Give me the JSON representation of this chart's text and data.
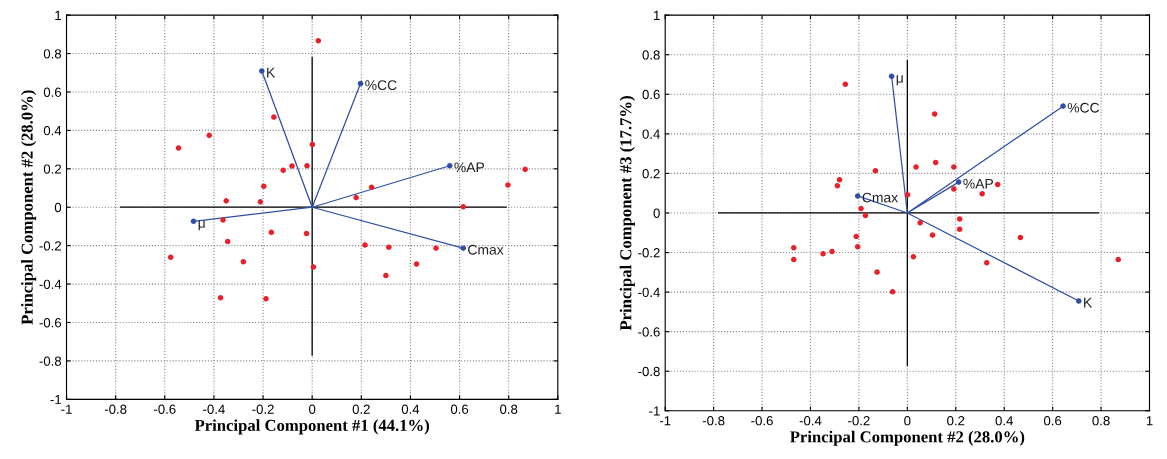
{
  "chart_data": [
    {
      "type": "scatter",
      "xlabel": "Principal Component #1 (44.1%)",
      "ylabel": "Principal Component #2 (28.0%)",
      "xlim": [
        -1,
        1
      ],
      "ylim": [
        -1,
        1
      ],
      "xticks": [
        -1,
        -0.8,
        -0.6,
        -0.4,
        -0.2,
        0,
        0.2,
        0.4,
        0.6,
        0.8,
        1
      ],
      "yticks": [
        -1,
        -0.8,
        -0.6,
        -0.4,
        -0.2,
        0,
        0.2,
        0.4,
        0.6,
        0.8,
        1
      ],
      "grid": true,
      "marker": "circle",
      "series": [
        {
          "type": "line",
          "color": "#000000",
          "marker": "none",
          "x": [
            -0.78,
            0.79
          ],
          "values": [
            0,
            0
          ]
        },
        {
          "type": "line",
          "color": "#000000",
          "marker": "none",
          "x": [
            0,
            0
          ],
          "values": [
            -0.77,
            0.78
          ]
        },
        {
          "type": "line",
          "color": "#2e4fa8",
          "marker": "none",
          "x": [
            0,
            -0.205,
            0,
            -0.483,
            0,
            0.197,
            0,
            0.56,
            0,
            0.615
          ],
          "values": [
            0,
            0.709,
            0,
            -0.073,
            0,
            0.644,
            0,
            0.216,
            0,
            -0.213
          ]
        },
        {
          "color": "#2e4fa8",
          "x": [
            -0.205,
            -0.483,
            0.197,
            0.56,
            0.615
          ],
          "values": [
            0.709,
            -0.073,
            0.644,
            0.216,
            -0.213
          ]
        },
        {
          "color": "#e8202a",
          "x": [
            -0.544,
            -0.419,
            -0.156,
            -0.118,
            -0.082,
            -0.197,
            -0.35,
            -0.211,
            -0.363,
            -0.166,
            -0.344,
            -0.576,
            -0.28,
            -0.373,
            -0.188,
            0.025,
            0.001,
            -0.021,
            0.242,
            0.179,
            0.615,
            0.797,
            0.867,
            -0.023,
            0.215,
            0.312,
            0.504,
            0.425,
            0.3,
            0.005
          ],
          "values": [
            0.308,
            0.374,
            0.469,
            0.192,
            0.215,
            0.109,
            0.033,
            0.028,
            -0.066,
            -0.131,
            -0.178,
            -0.26,
            -0.284,
            -0.471,
            -0.476,
            0.867,
            0.327,
            0.216,
            0.104,
            0.05,
            0.003,
            0.116,
            0.197,
            -0.137,
            -0.197,
            -0.208,
            -0.213,
            -0.296,
            -0.355,
            -0.311
          ]
        }
      ],
      "annotations": [
        {
          "text": "K",
          "x": -0.205,
          "y": 0.709
        },
        {
          "text": "μ",
          "x": -0.483,
          "y": -0.073
        },
        {
          "text": "%CC",
          "x": 0.197,
          "y": 0.644
        },
        {
          "text": "%AP",
          "x": 0.56,
          "y": 0.216
        },
        {
          "text": "Cmax",
          "x": 0.615,
          "y": -0.213
        }
      ]
    },
    {
      "type": "scatter",
      "xlabel": "Principal Component #2 (28.0%)",
      "ylabel": "Principal Component #3 (17.7%)",
      "xlim": [
        -1,
        1
      ],
      "ylim": [
        -1,
        1
      ],
      "xticks": [
        -1,
        -0.8,
        -0.6,
        -0.4,
        -0.2,
        0,
        0.2,
        0.4,
        0.6,
        0.8,
        1
      ],
      "yticks": [
        -1,
        -0.8,
        -0.6,
        -0.4,
        -0.2,
        0,
        0.2,
        0.4,
        0.6,
        0.8,
        1
      ],
      "grid": true,
      "marker": "circle",
      "series": [
        {
          "type": "line",
          "color": "#000000",
          "marker": "none",
          "x": [
            -0.78,
            0.79
          ],
          "values": [
            0,
            0
          ]
        },
        {
          "type": "line",
          "color": "#000000",
          "marker": "none",
          "x": [
            0,
            0
          ],
          "values": [
            -0.77,
            0.77
          ]
        },
        {
          "type": "line",
          "color": "#2e4fa8",
          "marker": "none",
          "x": [
            0,
            -0.065,
            0,
            -0.205,
            0,
            0.643,
            0,
            0.212,
            0,
            0.708
          ],
          "values": [
            0,
            0.691,
            0,
            0.086,
            0,
            0.54,
            0,
            0.156,
            0,
            -0.445
          ]
        },
        {
          "color": "#2e4fa8",
          "x": [
            -0.065,
            -0.205,
            0.643,
            0.212,
            0.708
          ],
          "values": [
            0.691,
            0.086,
            0.54,
            0.156,
            -0.445
          ]
        },
        {
          "color": "#e8202a",
          "x": [
            -0.256,
            -0.132,
            -0.28,
            -0.289,
            -0.191,
            -0.173,
            -0.211,
            -0.205,
            -0.469,
            -0.469,
            -0.348,
            -0.311,
            -0.125,
            -0.061,
            0.113,
            0.036,
            0.117,
            0.192,
            0.192,
            0.001,
            0.309,
            0.373,
            0.053,
            0.216,
            0.216,
            0.104,
            0.467,
            0.025,
            0.328,
            0.871
          ],
          "values": [
            0.651,
            0.213,
            0.168,
            0.138,
            0.022,
            -0.013,
            -0.119,
            -0.171,
            -0.176,
            -0.235,
            -0.206,
            -0.195,
            -0.299,
            -0.398,
            0.5,
            0.232,
            0.255,
            0.232,
            0.121,
            0.092,
            0.097,
            0.144,
            -0.049,
            -0.03,
            -0.082,
            -0.112,
            -0.124,
            -0.221,
            -0.252,
            -0.235
          ]
        }
      ],
      "annotations": [
        {
          "text": "μ",
          "x": -0.065,
          "y": 0.691
        },
        {
          "text": "Cmax",
          "x": -0.205,
          "y": 0.086
        },
        {
          "text": "%CC",
          "x": 0.643,
          "y": 0.54
        },
        {
          "text": "%AP",
          "x": 0.212,
          "y": 0.156
        },
        {
          "text": "K",
          "x": 0.708,
          "y": -0.445
        }
      ]
    }
  ]
}
